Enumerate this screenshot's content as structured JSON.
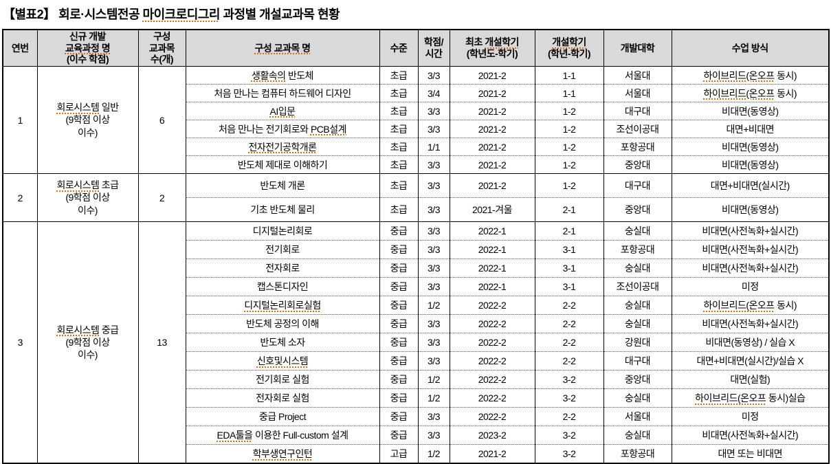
{
  "title": "【별표2】 회로·시스템전공 마이크로디그리 과정별 개설교과목 현황",
  "colors": {
    "header_bg": "#d9d9d9",
    "border": "#000000",
    "squiggle": "#e2690d",
    "text": "#000000"
  },
  "columns": [
    {
      "key": "no",
      "label": "연번"
    },
    {
      "key": "program",
      "label": "신규 개발\n교육과정 명\n(이수 학점)"
    },
    {
      "key": "count",
      "label": "구성\n교과목\n수(개)"
    },
    {
      "key": "course",
      "label": "구성 교과목 명"
    },
    {
      "key": "level",
      "label": "수준"
    },
    {
      "key": "credit",
      "label": "학점/\n시간"
    },
    {
      "key": "first_term",
      "label": "최초 개설학기\n(학년도-학기)"
    },
    {
      "key": "term",
      "label": "개설학기\n(학년-학기)"
    },
    {
      "key": "univ",
      "label": "개발대학"
    },
    {
      "key": "method",
      "label": "수업 방식"
    }
  ],
  "groups": [
    {
      "no": "1",
      "program": "회로시스템 일반\n(9학점 이상\n이수)",
      "count": "6",
      "courses": [
        {
          "name": "생활속의 반도체",
          "level": "초급",
          "credit": "3/3",
          "first_term": "2021-2",
          "term": "1-1",
          "univ": "서울대",
          "method": "하이브리드(온오프 동시)"
        },
        {
          "name": "처음 만나는 컴퓨터 하드웨어 디자인",
          "level": "초급",
          "credit": "3/4",
          "first_term": "2021-2",
          "term": "1-1",
          "univ": "서울대",
          "method": "하이브리드(온오프 동시)"
        },
        {
          "name": "AI입문",
          "level": "초급",
          "credit": "3/3",
          "first_term": "2021-2",
          "term": "1-2",
          "univ": "대구대",
          "method": "비대면(동영상)"
        },
        {
          "name": "처음 만나는 전기회로와 PCB설계",
          "level": "초급",
          "credit": "3/3",
          "first_term": "2021-2",
          "term": "1-2",
          "univ": "조선이공대",
          "method": "대면+비대면"
        },
        {
          "name": "전자전기공학개론",
          "level": "초급",
          "credit": "1/1",
          "first_term": "2021-2",
          "term": "1-2",
          "univ": "포항공대",
          "method": "비대면(동영상)"
        },
        {
          "name": "반도체 제대로 이해하기",
          "level": "초급",
          "credit": "3/3",
          "first_term": "2021-2",
          "term": "1-2",
          "univ": "중앙대",
          "method": "비대면(동영상)"
        }
      ]
    },
    {
      "no": "2",
      "program": "회로시스템 초급\n(9학점 이상\n이수)",
      "count": "2",
      "courses": [
        {
          "name": "반도체 개론",
          "level": "초급",
          "credit": "3/3",
          "first_term": "2021-2",
          "term": "1-2",
          "univ": "대구대",
          "method": "대면+비대면(실시간)"
        },
        {
          "name": "기초 반도체 물리",
          "level": "초급",
          "credit": "3/3",
          "first_term": "2021-겨울",
          "term": "2-1",
          "univ": "중앙대",
          "method": "비대면(동영상)"
        }
      ]
    },
    {
      "no": "3",
      "program": "회로시스템 중급\n(9학점 이상\n이수)",
      "count": "13",
      "courses": [
        {
          "name": "디지털논리회로",
          "level": "중급",
          "credit": "3/3",
          "first_term": "2022-1",
          "term": "2-1",
          "univ": "숭실대",
          "method": "비대면(사전녹화+실시간)"
        },
        {
          "name": "전기회로",
          "level": "중급",
          "credit": "3/3",
          "first_term": "2022-1",
          "term": "3-1",
          "univ": "포항공대",
          "method": "비대면(사전녹화+실시간)"
        },
        {
          "name": "전자회로",
          "level": "중급",
          "credit": "3/3",
          "first_term": "2022-1",
          "term": "3-1",
          "univ": "숭실대",
          "method": "비대면(사전녹화+실시간)"
        },
        {
          "name": "캡스톤디자인",
          "level": "중급",
          "credit": "3/3",
          "first_term": "2022-1",
          "term": "3-1",
          "univ": "조선이공대",
          "method": "미정"
        },
        {
          "name": "디지털논리회로실험",
          "level": "중급",
          "credit": "1/2",
          "first_term": "2022-2",
          "term": "2-2",
          "univ": "숭실대",
          "method": "하이브리드(온오프 동시)"
        },
        {
          "name": "반도체 공정의 이해",
          "level": "중급",
          "credit": "3/3",
          "first_term": "2022-2",
          "term": "2-2",
          "univ": "숭실대",
          "method": "비대면(사전녹화+실시간)"
        },
        {
          "name": "반도체 소자",
          "level": "중급",
          "credit": "3/3",
          "first_term": "2022-2",
          "term": "2-2",
          "univ": "강원대",
          "method": "비대면(동영상) / 실습 X"
        },
        {
          "name": "신호및시스템",
          "level": "중급",
          "credit": "3/3",
          "first_term": "2022-2",
          "term": "2-2",
          "univ": "대구대",
          "method": "대면+비대면(실시간)/실습 X"
        },
        {
          "name": "전기회로 실험",
          "level": "중급",
          "credit": "1/2",
          "first_term": "2022-2",
          "term": "3-2",
          "univ": "중앙대",
          "method": "대면(실험)"
        },
        {
          "name": "전자회로 실험",
          "level": "중급",
          "credit": "1/2",
          "first_term": "2022-2",
          "term": "3-2",
          "univ": "숭실대",
          "method": "하이브리드(온오프 동시)실습"
        },
        {
          "name": "중급 Project",
          "level": "중급",
          "credit": "3/3",
          "first_term": "2022-2",
          "term": "2-2",
          "univ": "서울대",
          "method": "미정"
        },
        {
          "name": "EDA툴을 이용한 Full-custom 설계",
          "level": "중급",
          "credit": "3/3",
          "first_term": "2023-2",
          "term": "3-2",
          "univ": "숭실대",
          "method": "비대면(사전녹화+실시간)"
        },
        {
          "name": "학부생연구인턴",
          "level": "고급",
          "credit": "1/2",
          "first_term": "2021-2",
          "term": "3-2",
          "univ": "포항공대",
          "method": "대면 또는 비대면"
        }
      ]
    }
  ],
  "squiggle_terms": [
    "마이크로디그리",
    "교육과정 명",
    "구성 교과목 명",
    "개설학기",
    "회로시스템",
    "생활속의",
    "AI입문",
    "PCB설계",
    "전자전기공학개론",
    "디지털논리회로실험",
    "신호및시스템",
    "EDA툴을",
    "학부생연구인턴",
    "하이브리드(온오프"
  ]
}
